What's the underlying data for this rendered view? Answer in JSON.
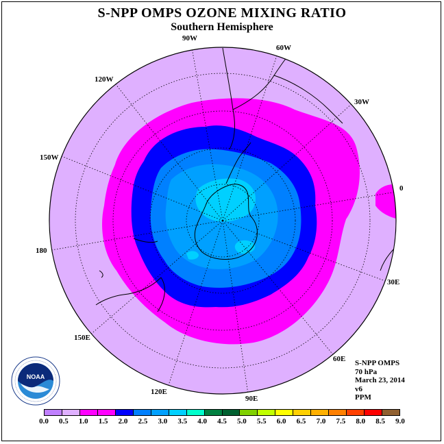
{
  "header": {
    "title": "S-NPP OMPS OZONE MIXING RATIO",
    "subtitle": "Southern Hemisphere"
  },
  "map": {
    "projection": "polar-stereographic-south",
    "longitude_labels": [
      "90W",
      "60W",
      "30W",
      "0",
      "30E",
      "60E",
      "90E",
      "120E",
      "150E",
      "180",
      "150W",
      "120W"
    ],
    "contour_levels": [
      "1.0",
      "1.5",
      "2.0",
      "2.5",
      "3.0",
      "3.5"
    ],
    "background_level_color": "#dfb0ff"
  },
  "info": {
    "instrument": "S-NPP OMPS",
    "pressure": "70 hPa",
    "date": "March 23, 2014",
    "version": "v6",
    "units": "PPM"
  },
  "logo": {
    "name": "noaa-logo",
    "text": "NOAA",
    "ring_text": "NATIONAL OCEANIC AND ATMOSPHERIC ADMINISTRATION · U.S. DEPARTMENT OF COMMERCE"
  },
  "colorbar": {
    "colors": [
      "#c080ff",
      "#dfb0ff",
      "#ff00ff",
      "#ff00ff",
      "#0000ff",
      "#0080ff",
      "#00a0ff",
      "#00d0ff",
      "#00ffcc",
      "#008040",
      "#006030",
      "#80d000",
      "#c0ff00",
      "#ffff00",
      "#ffd000",
      "#ffb000",
      "#ff8000",
      "#ff4000",
      "#ff0000",
      "#906030"
    ],
    "ticks": [
      "0.0",
      "0.5",
      "1.0",
      "1.5",
      "2.0",
      "2.5",
      "3.0",
      "3.5",
      "4.0",
      "4.5",
      "5.0",
      "5.5",
      "6.0",
      "6.5",
      "7.0",
      "7.5",
      "8.0",
      "8.5",
      "9.0"
    ]
  }
}
